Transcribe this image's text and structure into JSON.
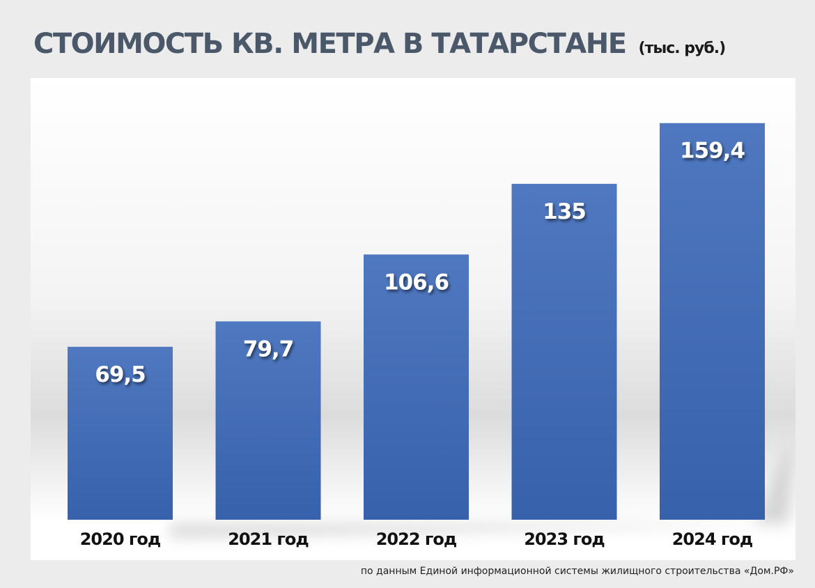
{
  "header": {
    "title": "СТОИМОСТЬ КВ. МЕТРА В ТАТАРСТАНЕ",
    "unit": "(тыс. руб.)"
  },
  "footer": {
    "source": "по данным Единой информационной системы жилищного строительства «Дом.РФ»"
  },
  "chart_data": {
    "type": "bar",
    "title": "СТОИМОСТЬ КВ. МЕТРА В ТАТАРСТАНЕ",
    "subtitle": "(тыс. руб.)",
    "categories": [
      "2020 год",
      "2021 год",
      "2022 год",
      "2023 год",
      "2024 год"
    ],
    "values": [
      69.5,
      79.7,
      106.6,
      135,
      159.4
    ],
    "value_labels": [
      "69,5",
      "79,7",
      "106,6",
      "135",
      "159,4"
    ],
    "ylim": [
      0,
      168
    ],
    "grid": false,
    "legend": "none",
    "colors": {
      "bar_top": "#4f78c0",
      "bar_bottom": "#3761ab",
      "label": "#ffffff"
    }
  }
}
